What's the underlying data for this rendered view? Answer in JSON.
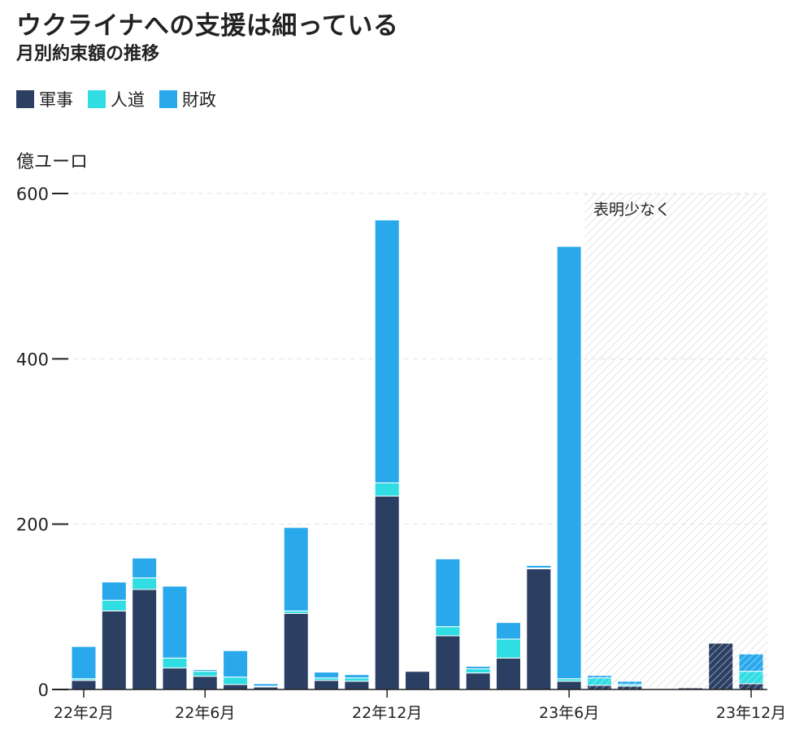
{
  "title": "ウクライナへの支援は細っている",
  "subtitle": "月別約束額の推移",
  "colors": {
    "military": "#2b3f63",
    "humanitarian": "#30dde3",
    "financial": "#2aa8ec",
    "shade": "#e6e6e6",
    "axis": "#222222"
  },
  "legend": [
    {
      "key": "military",
      "label": "軍事"
    },
    {
      "key": "humanitarian",
      "label": "人道"
    },
    {
      "key": "financial",
      "label": "財政"
    }
  ],
  "chart_data": {
    "type": "bar",
    "stacked": true,
    "ylabel": "億ユーロ",
    "ylim": [
      0,
      600
    ],
    "yticks": [
      0,
      200,
      400,
      600
    ],
    "grid": true,
    "categories": [
      "22/2",
      "22/3",
      "22/4",
      "22/5",
      "22/6",
      "22/7",
      "22/8",
      "22/9",
      "22/10",
      "22/11",
      "22/12",
      "23/1",
      "23/2",
      "23/3",
      "23/4",
      "23/5",
      "23/6",
      "23/7",
      "23/8",
      "23/9",
      "23/10",
      "23/11",
      "23/12"
    ],
    "x_tick_labels": [
      {
        "index": 0,
        "label": "22年2月"
      },
      {
        "index": 4,
        "label": "22年6月"
      },
      {
        "index": 10,
        "label": "22年12月"
      },
      {
        "index": 16,
        "label": "23年6月"
      },
      {
        "index": 22,
        "label": "23年12月"
      }
    ],
    "series": [
      {
        "key": "military",
        "name": "軍事",
        "values": [
          11,
          95,
          121,
          26,
          16,
          6,
          3,
          92,
          11,
          10,
          234,
          22,
          65,
          20,
          38,
          146,
          10,
          5,
          4,
          1,
          2,
          56,
          7
        ]
      },
      {
        "key": "humanitarian",
        "name": "人道",
        "values": [
          2,
          13,
          14,
          12,
          6,
          9,
          1,
          3,
          3,
          4,
          16,
          1,
          11,
          5,
          23,
          1,
          3,
          9,
          2,
          0,
          0,
          0,
          15
        ]
      },
      {
        "key": "financial",
        "name": "財政",
        "values": [
          39,
          22,
          24,
          87,
          2,
          32,
          3,
          101,
          7,
          4,
          318,
          1,
          82,
          3,
          20,
          3,
          523,
          3,
          4,
          0,
          0,
          0,
          21
        ]
      }
    ],
    "annotation": {
      "label": "表明少なく",
      "from_index": 17,
      "to_index": 22
    }
  }
}
